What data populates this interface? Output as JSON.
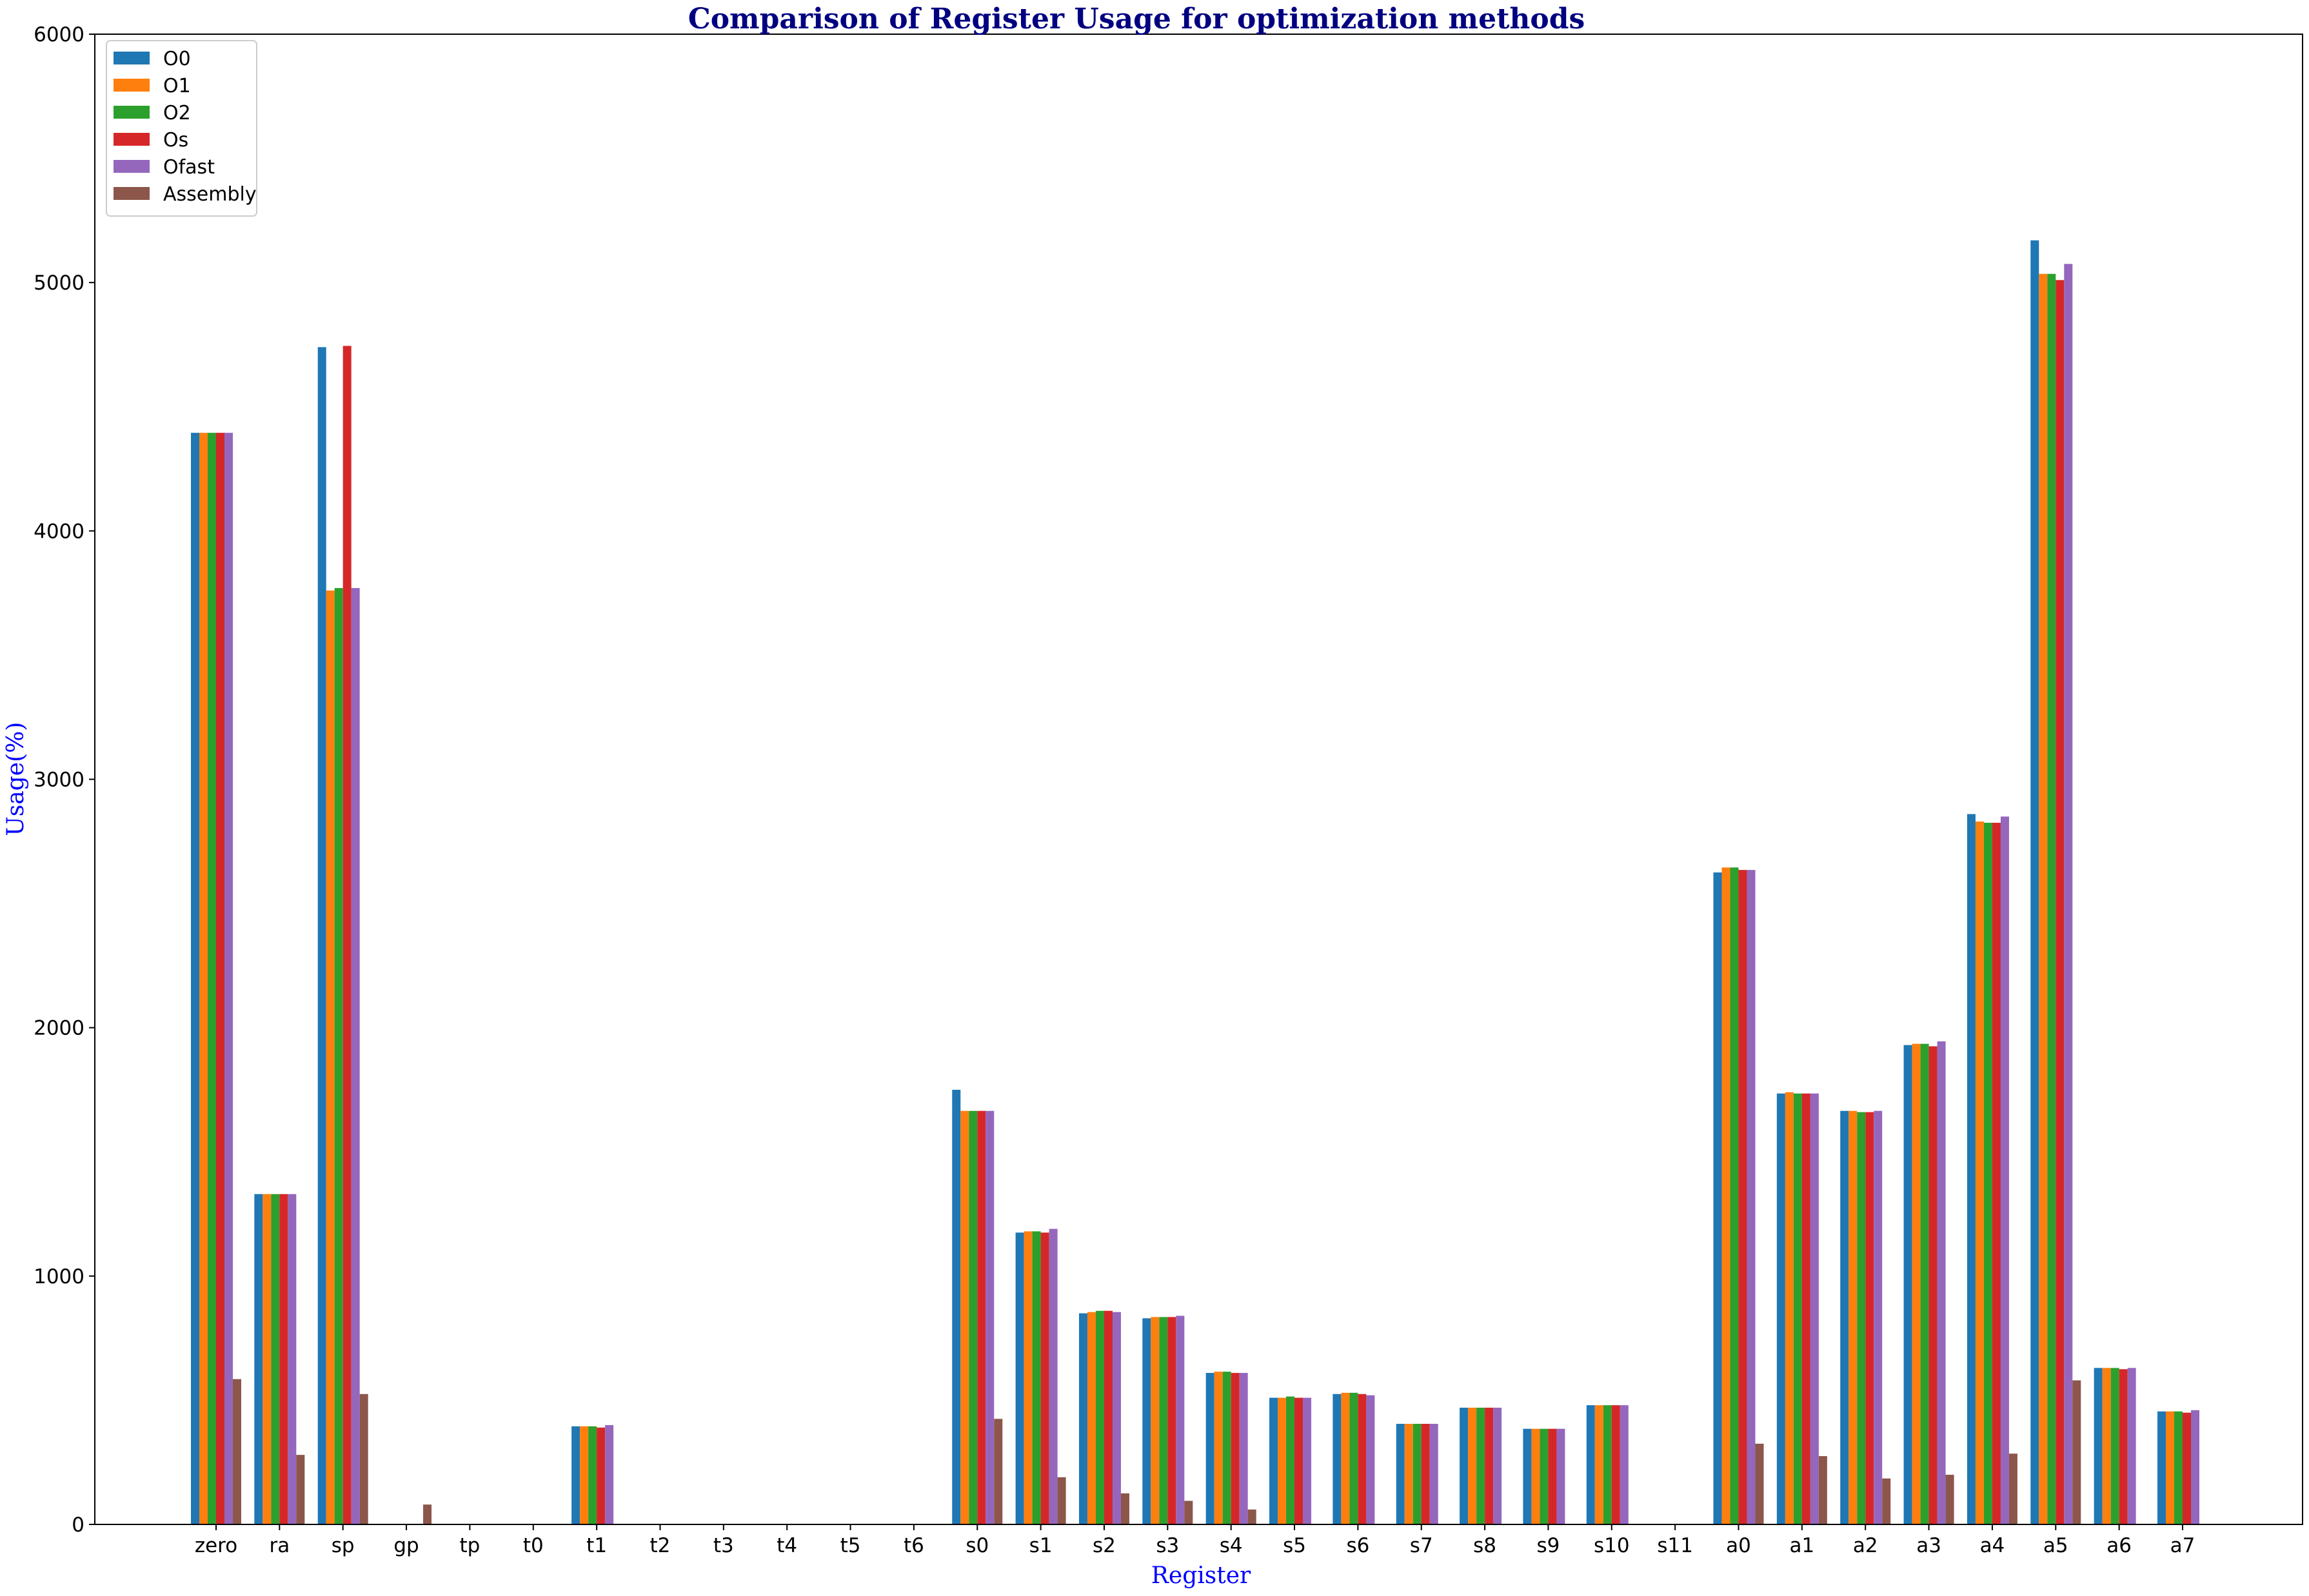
{
  "chart_data": {
    "type": "bar",
    "title": "Comparison of Register Usage for optimization methods",
    "xlabel": "Register",
    "ylabel": "Usage(%)",
    "ylim": [
      0,
      6000
    ],
    "yticks": [
      0,
      1000,
      2000,
      3000,
      4000,
      5000,
      6000
    ],
    "grid": false,
    "legend_position": "top-left",
    "title_color": "#000080",
    "label_color": "#0000ff",
    "categories": [
      "zero",
      "ra",
      "sp",
      "gp",
      "tp",
      "t0",
      "t1",
      "t2",
      "t3",
      "t4",
      "t5",
      "t6",
      "s0",
      "s1",
      "s2",
      "s3",
      "s4",
      "s5",
      "s6",
      "s7",
      "s8",
      "s9",
      "s10",
      "s11",
      "a0",
      "a1",
      "a2",
      "a3",
      "a4",
      "a5",
      "a6",
      "a7"
    ],
    "series": [
      {
        "name": "O0",
        "color": "#1f77b4",
        "values": [
          4395,
          1330,
          4740,
          0,
          0,
          0,
          395,
          0,
          0,
          0,
          0,
          0,
          1750,
          1175,
          850,
          830,
          610,
          510,
          525,
          405,
          470,
          385,
          480,
          0,
          2625,
          1735,
          1665,
          1930,
          2860,
          5170,
          630,
          455
        ]
      },
      {
        "name": "O1",
        "color": "#ff7f0e",
        "values": [
          4395,
          1330,
          3760,
          0,
          0,
          0,
          395,
          0,
          0,
          0,
          0,
          0,
          1665,
          1180,
          855,
          835,
          615,
          510,
          530,
          405,
          470,
          385,
          480,
          0,
          2645,
          1740,
          1665,
          1935,
          2830,
          5035,
          630,
          455
        ]
      },
      {
        "name": "O2",
        "color": "#2ca02c",
        "values": [
          4395,
          1330,
          3770,
          0,
          0,
          0,
          395,
          0,
          0,
          0,
          0,
          0,
          1665,
          1180,
          860,
          835,
          615,
          515,
          530,
          405,
          470,
          385,
          480,
          0,
          2645,
          1735,
          1660,
          1935,
          2825,
          5035,
          630,
          455
        ]
      },
      {
        "name": "Os",
        "color": "#d62728",
        "values": [
          4395,
          1330,
          4745,
          0,
          0,
          0,
          390,
          0,
          0,
          0,
          0,
          0,
          1665,
          1175,
          860,
          835,
          610,
          510,
          525,
          405,
          470,
          385,
          480,
          0,
          2635,
          1735,
          1660,
          1925,
          2825,
          5010,
          625,
          450
        ]
      },
      {
        "name": "Ofast",
        "color": "#9467bd",
        "values": [
          4395,
          1330,
          3770,
          0,
          0,
          0,
          400,
          0,
          0,
          0,
          0,
          0,
          1665,
          1190,
          855,
          840,
          610,
          510,
          520,
          405,
          470,
          385,
          480,
          0,
          2635,
          1735,
          1665,
          1945,
          2850,
          5075,
          630,
          460
        ]
      },
      {
        "name": "Assembly",
        "color": "#8c564b",
        "values": [
          585,
          280,
          525,
          80,
          0,
          0,
          0,
          0,
          0,
          0,
          0,
          0,
          425,
          190,
          125,
          95,
          60,
          0,
          0,
          0,
          0,
          0,
          0,
          0,
          325,
          275,
          185,
          200,
          285,
          580,
          0,
          0
        ]
      }
    ]
  }
}
